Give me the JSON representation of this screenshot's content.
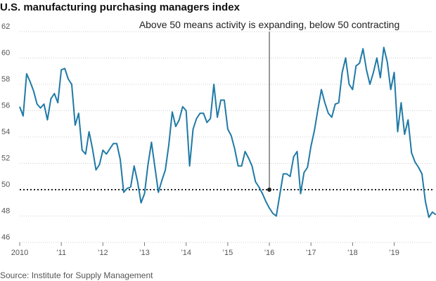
{
  "chart_data": {
    "type": "line",
    "title": "U.S. manufacturing purchasing managers index",
    "annotation": "Above 50 means activity is expanding, below 50 contracting",
    "annotation_date": 2016.0,
    "source": "Source: Institute for Supply Management",
    "reference_line": 50,
    "ylim": [
      46,
      62
    ],
    "xlim": [
      2010.0,
      2019.92
    ],
    "y_ticks": [
      46,
      48,
      50,
      52,
      54,
      56,
      58,
      60,
      62
    ],
    "x_ticks": [
      {
        "value": 2010,
        "label": "2010"
      },
      {
        "value": 2011,
        "label": "’11"
      },
      {
        "value": 2012,
        "label": "’12"
      },
      {
        "value": 2013,
        "label": "’13"
      },
      {
        "value": 2014,
        "label": "’14"
      },
      {
        "value": 2015,
        "label": "’15"
      },
      {
        "value": 2016,
        "label": "’16"
      },
      {
        "value": 2017,
        "label": "’17"
      },
      {
        "value": 2018,
        "label": "’18"
      },
      {
        "value": 2019,
        "label": "’19"
      }
    ],
    "grid": true,
    "series": [
      {
        "color": "#1f7aa6",
        "start_year": 2010,
        "values": [
          56.3,
          55.6,
          58.8,
          58.2,
          57.5,
          56.5,
          56.2,
          56.5,
          55.3,
          56.9,
          57.3,
          56.6,
          59.1,
          59.2,
          58.4,
          58.0,
          54.9,
          55.8,
          53.0,
          52.7,
          54.4,
          53.1,
          51.5,
          51.9,
          53.0,
          52.7,
          53.1,
          53.5,
          53.5,
          52.3,
          49.8,
          50.1,
          50.2,
          51.8,
          50.6,
          49.0,
          49.7,
          51.9,
          53.6,
          51.7,
          49.8,
          50.7,
          51.5,
          53.4,
          55.9,
          54.8,
          55.3,
          56.3,
          56.0,
          51.8,
          54.6,
          55.4,
          55.8,
          55.8,
          55.1,
          55.4,
          58.0,
          55.5,
          56.8,
          56.8,
          54.6,
          54.1,
          53.1,
          51.8,
          51.8,
          52.9,
          52.4,
          51.8,
          50.6,
          50.2,
          49.7,
          49.1,
          48.6,
          48.2,
          48.0,
          49.6,
          51.2,
          51.2,
          51.0,
          52.5,
          52.9,
          49.7,
          51.3,
          51.7,
          53.3,
          54.5,
          56.1,
          57.6,
          56.6,
          55.8,
          55.5,
          56.5,
          56.6,
          58.9,
          60.0,
          58.0,
          57.6,
          59.4,
          59.6,
          60.7,
          59.1,
          58.0,
          58.9,
          60.0,
          58.5,
          60.8,
          59.7,
          57.6,
          58.9,
          54.4,
          56.6,
          54.2,
          55.3,
          52.8,
          52.1,
          51.7,
          51.2,
          49.1,
          47.9,
          48.3,
          48.1
        ]
      }
    ]
  }
}
